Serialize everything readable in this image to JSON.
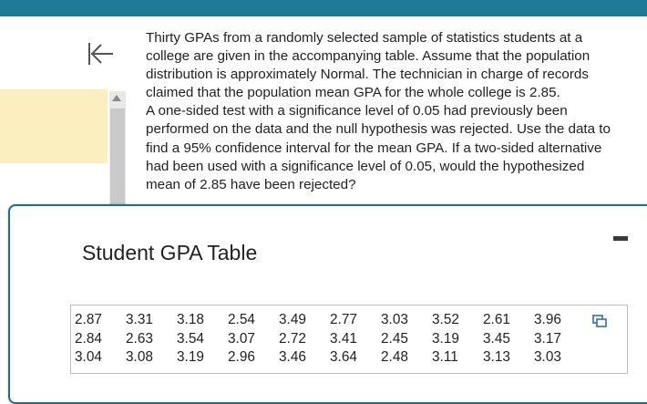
{
  "question": {
    "text": "Thirty GPAs from a randomly selected sample of statistics students at a\ncollege are given in the accompanying table. Assume that the population\ndistribution is approximately Normal. The technician in charge of records\nclaimed that the population mean GPA for the whole college is 2.85.\nA one-sided test with a significance level of 0.05 had previously been\nperformed on the data and the null hypothesis was rejected. Use the data to\nfind a 95% confidence interval for the mean GPA. If a two-sided alternative\nhad been used with a significance level of 0.05, would the hypothesized\nmean of 2.85 have been rejected?"
  },
  "popup": {
    "title": "Student GPA Table",
    "rows": [
      [
        "2.87",
        "3.31",
        "3.18",
        "2.54",
        "3.49",
        "2.77",
        "3.03",
        "3.52",
        "2.61",
        "3.96"
      ],
      [
        "2.84",
        "2.63",
        "3.54",
        "3.07",
        "2.72",
        "3.41",
        "2.45",
        "3.19",
        "3.45",
        "3.17"
      ],
      [
        "3.04",
        "3.08",
        "3.19",
        "2.96",
        "3.46",
        "3.64",
        "2.48",
        "3.11",
        "3.13",
        "3.03"
      ]
    ]
  },
  "colors": {
    "topbar": "#1e7a96",
    "highlight": "#fbefc0",
    "popup_border": "#1e6e8a",
    "copy_icon": "#2f6fb5"
  },
  "icons": {
    "collapse": "collapse-left-icon",
    "scroll_up": "scroll-up-arrow-icon",
    "minimize": "minimize-icon",
    "copy": "copy-icon"
  }
}
